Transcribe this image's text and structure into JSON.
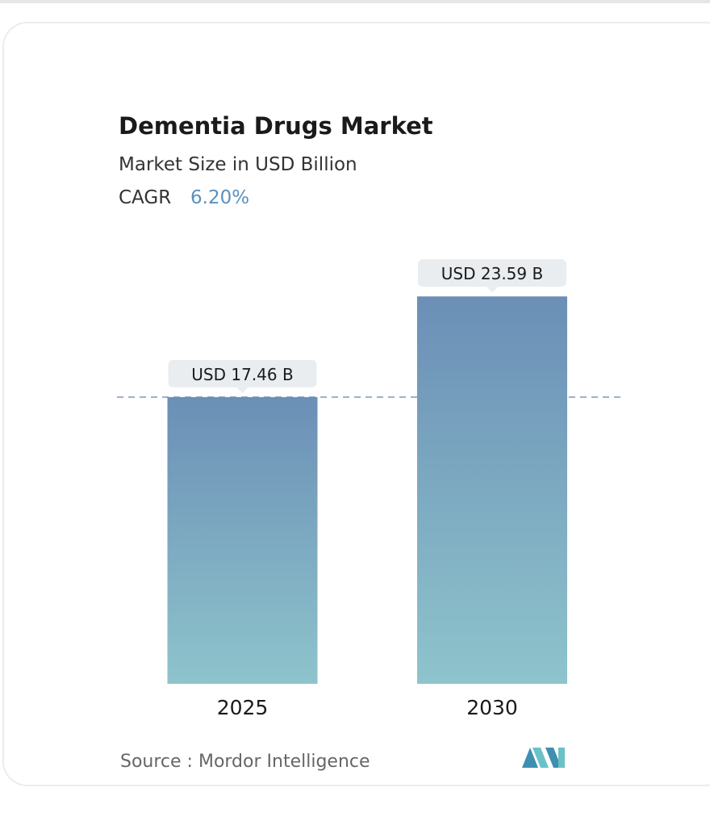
{
  "chart_data": {
    "type": "bar",
    "title": "Dementia Drugs Market",
    "subtitle": "Market Size in USD Billion",
    "cagr_label": "CAGR",
    "cagr_value": "6.20%",
    "categories": [
      "2025",
      "2030"
    ],
    "values": [
      17.46,
      23.59
    ],
    "value_labels": [
      "USD 17.46 B",
      "USD 23.59 B"
    ],
    "source": "Source :  Mordor Intelligence"
  }
}
